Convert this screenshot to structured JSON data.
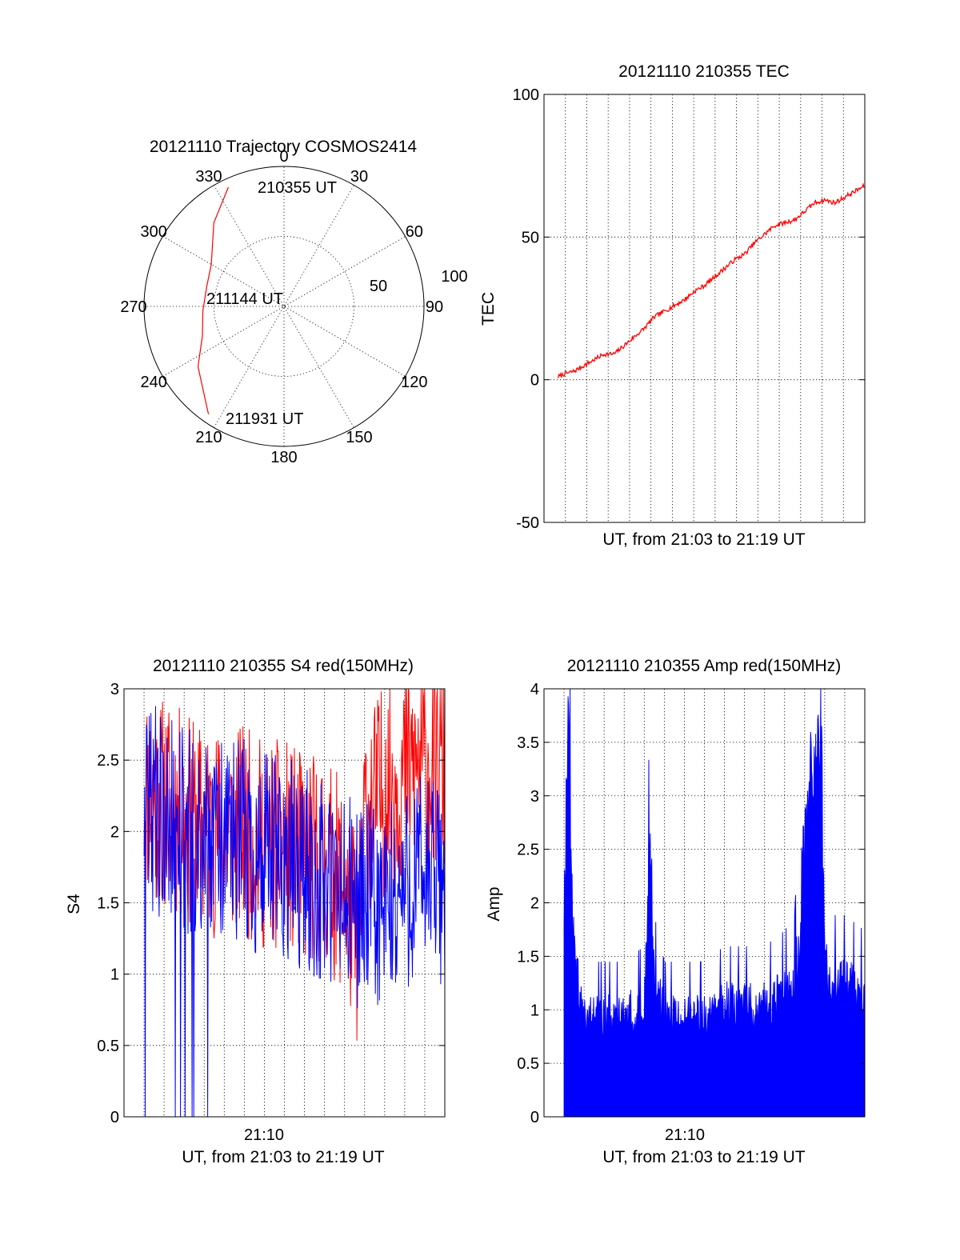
{
  "colors": {
    "red": "#ff0000",
    "blue": "#0000ff",
    "axis": "#000000",
    "background": "#ffffff"
  },
  "chart_data": [
    {
      "type": "polar",
      "title": "20121110 Trajectory COSMOS2414",
      "azimuth_labels": [
        "0",
        "30",
        "60",
        "90",
        "120",
        "150",
        "180",
        "210",
        "240",
        "270",
        "300",
        "330"
      ],
      "radial_labels": [
        "50",
        "100"
      ],
      "radial_range": [
        0,
        100
      ],
      "direction": "clockwise, 0 at top",
      "annotations": [
        "210355 UT",
        "211144 UT",
        "211931 UT"
      ],
      "series": [
        {
          "color": "#ff0000",
          "points": [
            {
              "az": 335,
              "r": 94
            },
            {
              "az": 320,
              "r": 78
            },
            {
              "az": 300,
              "r": 60
            },
            {
              "az": 285,
              "r": 57
            },
            {
              "az": 267,
              "r": 58
            },
            {
              "az": 250,
              "r": 62
            },
            {
              "az": 235,
              "r": 75
            },
            {
              "az": 215,
              "r": 94
            }
          ]
        }
      ]
    },
    {
      "type": "line",
      "title": "20121110 210355 TEC",
      "ylabel": "TEC",
      "xlabel": "UT, from 21:03 to 21:19 UT",
      "xlim": [
        0,
        16
      ],
      "ylim": [
        -50,
        100
      ],
      "yticks": [
        "100",
        "50",
        "0",
        "-50"
      ],
      "grid": true,
      "series": [
        {
          "color": "#ff0000",
          "x": [
            0.7,
            1,
            1.5,
            2,
            2.5,
            3,
            3.5,
            4,
            4.5,
            5,
            5.5,
            6,
            6.5,
            7,
            7.5,
            8,
            8.5,
            9,
            9.5,
            10,
            10.5,
            11,
            11.5,
            12,
            12.5,
            13,
            13.5,
            14,
            14.5,
            15,
            15.5,
            16
          ],
          "y": [
            1,
            2,
            3,
            5,
            7,
            9,
            9,
            12,
            15,
            18,
            22,
            24,
            26,
            28,
            31,
            33,
            36,
            39,
            42,
            44,
            48,
            51,
            54,
            55,
            56,
            59,
            62,
            63,
            62,
            64,
            66,
            68
          ]
        }
      ]
    },
    {
      "type": "line",
      "title": "20121110 210355 S4 red(150MHz)",
      "ylabel": "S4",
      "xlabel": "UT, from 21:03 to 21:19 UT",
      "xticks": [
        "21:10"
      ],
      "xlim": [
        0,
        16
      ],
      "ylim": [
        0,
        3
      ],
      "yticks": [
        "3",
        "2.5",
        "2",
        "1.5",
        "1",
        "0.5",
        "0"
      ],
      "grid": true,
      "series": [
        {
          "color": "#ff0000",
          "x": [
            0,
            1,
            2,
            3,
            4,
            5,
            6,
            7,
            8,
            9,
            10,
            11,
            11.7,
            12,
            13,
            14,
            15,
            16
          ],
          "y": [
            2.4,
            2.3,
            2.2,
            2.1,
            2.0,
            2.0,
            2.0,
            1.9,
            1.9,
            1.8,
            1.8,
            1.6,
            1.2,
            2.1,
            2.3,
            2.4,
            2.5,
            2.4
          ]
        },
        {
          "color": "#0000ff",
          "x": [
            0,
            1,
            2,
            3,
            4,
            5,
            6,
            7,
            8,
            9,
            10,
            11,
            12,
            13,
            14,
            15,
            16
          ],
          "y": [
            2.3,
            2.2,
            2.1,
            2.0,
            1.9,
            1.9,
            1.9,
            1.8,
            1.8,
            1.7,
            1.6,
            1.5,
            1.5,
            1.4,
            1.6,
            1.7,
            1.6
          ]
        }
      ]
    },
    {
      "type": "line",
      "title": "20121110 210355 Amp red(150MHz)",
      "ylabel": "Amp",
      "xlabel": "UT, from 21:03 to 21:19 UT",
      "xticks": [
        "21:10"
      ],
      "xlim": [
        0,
        16
      ],
      "ylim": [
        0,
        4
      ],
      "yticks": [
        "4",
        "3.5",
        "3",
        "2.5",
        "2",
        "1.5",
        "1",
        "0.5",
        "0"
      ],
      "grid": true,
      "series": [
        {
          "color": "#0000ff",
          "x": [
            0,
            0.5,
            1,
            1.2,
            1.5,
            2,
            3,
            4,
            5,
            5.3,
            5.5,
            6,
            7,
            8,
            9,
            10,
            11,
            12,
            12.5,
            13,
            13.3,
            13.8,
            14,
            14.5,
            15,
            16
          ],
          "y": [
            1.8,
            1.7,
            2.2,
            3.6,
            1.5,
            1.0,
            1.0,
            1.0,
            1.1,
            2.7,
            1.3,
            1.0,
            1.0,
            1.0,
            1.1,
            1.1,
            1.1,
            1.2,
            1.3,
            2.6,
            3.2,
            3.8,
            1.5,
            1.3,
            1.3,
            1.2
          ]
        }
      ]
    }
  ]
}
